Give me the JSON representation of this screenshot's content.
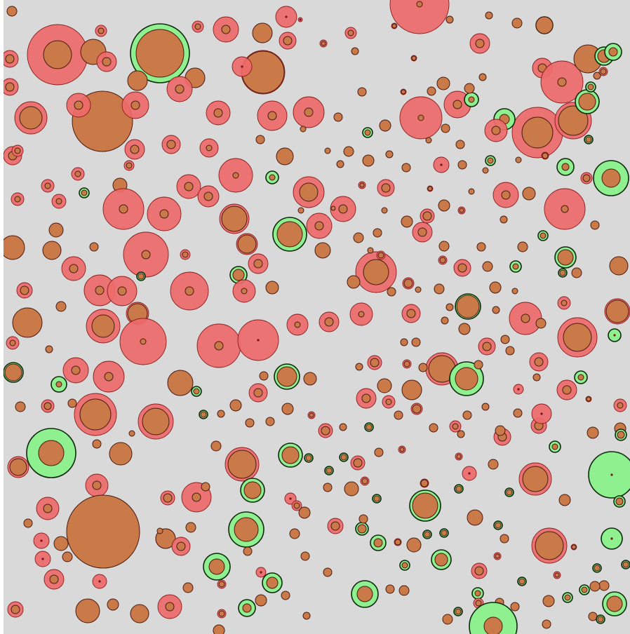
{
  "canvas": {
    "background": "#d9d9d9",
    "palette": {
      "red_fill": "#ee6a6a",
      "red_stroke": "#8a1c1c",
      "green_fill": "#8ef08e",
      "green_stroke": "#0d2a0d",
      "core_fill": "#c97a48",
      "core_stroke": "#4a1a10",
      "center_dot": "#7a1414"
    },
    "description_visible_text": ""
  }
}
